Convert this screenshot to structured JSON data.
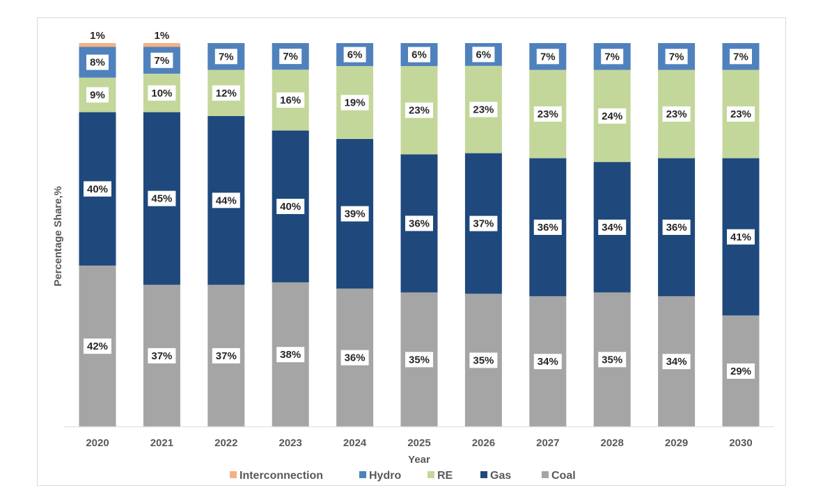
{
  "chart_data": {
    "type": "bar",
    "stacked": true,
    "categories": [
      "2020",
      "2021",
      "2022",
      "2023",
      "2024",
      "2025",
      "2026",
      "2027",
      "2028",
      "2029",
      "2030"
    ],
    "series": [
      {
        "name": "Coal",
        "color": "#a5a5a5",
        "values": [
          42,
          37,
          37,
          38,
          36,
          35,
          35,
          34,
          35,
          34,
          29
        ]
      },
      {
        "name": "Gas",
        "color": "#1f497d",
        "values": [
          40,
          45,
          44,
          40,
          39,
          36,
          37,
          36,
          34,
          36,
          41
        ]
      },
      {
        "name": "RE",
        "color": "#c4d79b",
        "values": [
          9,
          10,
          12,
          16,
          19,
          23,
          23,
          23,
          24,
          23,
          23
        ]
      },
      {
        "name": "Hydro",
        "color": "#4f81bd",
        "values": [
          8,
          7,
          7,
          7,
          6,
          6,
          6,
          7,
          7,
          7,
          7
        ]
      },
      {
        "name": "Interconnection",
        "color": "#f4b183",
        "values": [
          1,
          1,
          0,
          0,
          0,
          0,
          0,
          0,
          0,
          0,
          0
        ]
      }
    ],
    "legend_order": [
      "Interconnection",
      "Hydro",
      "RE",
      "Gas",
      "Coal"
    ],
    "legend_position": "bottom",
    "xlabel": "Year",
    "ylabel": "Percentage Share,%",
    "ylim": [
      0,
      100
    ],
    "value_suffix": "%",
    "grid": false
  }
}
